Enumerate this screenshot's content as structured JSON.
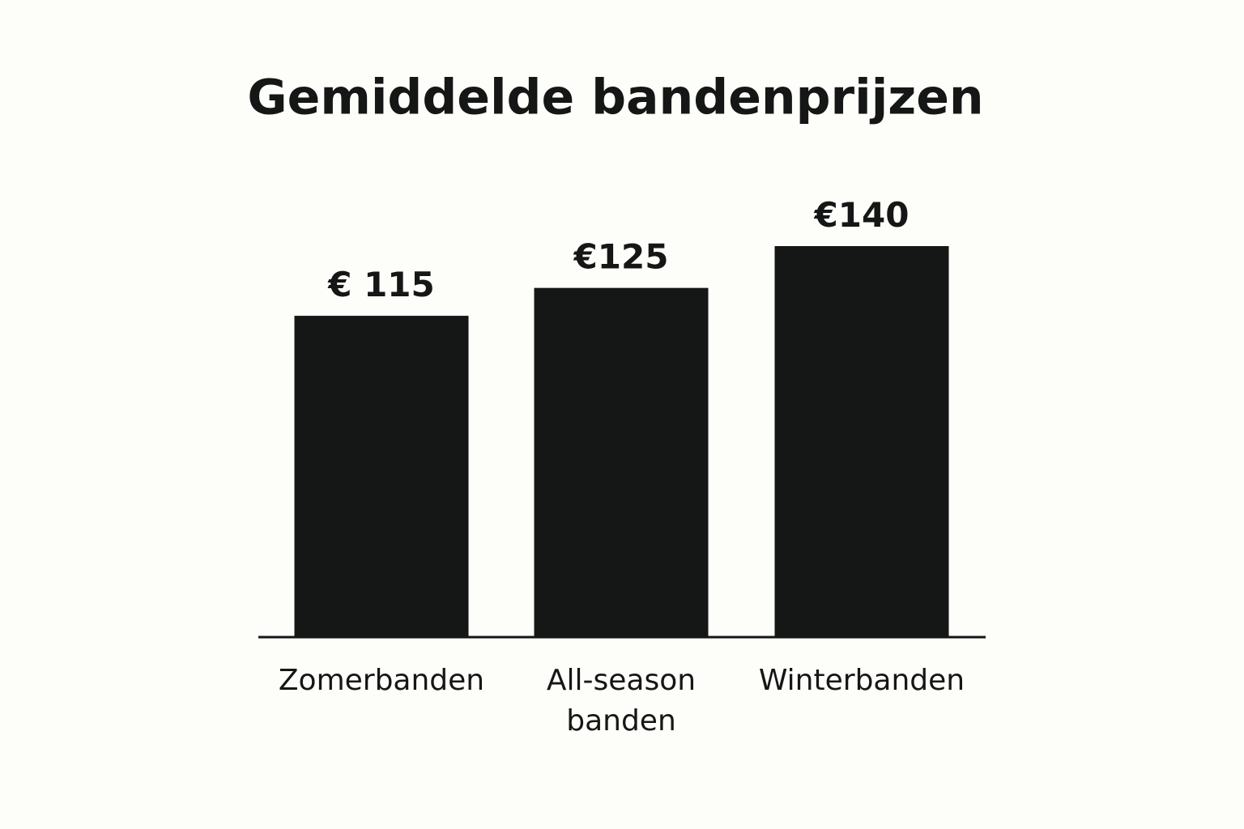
{
  "chart_data": {
    "type": "bar",
    "title": "Gemiddelde bandenprijzen",
    "categories": [
      "Zomerbanden",
      "All-season banden",
      "Winterbanden"
    ],
    "values": [
      115,
      125,
      140
    ],
    "value_labels": [
      "€ 115",
      "€125",
      "€140"
    ],
    "color": "#151716"
  }
}
